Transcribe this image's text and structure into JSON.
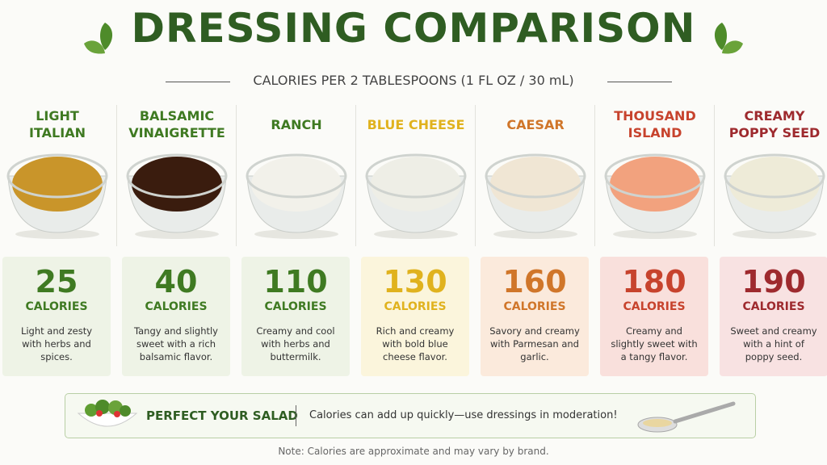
{
  "header": {
    "title": "DRESSING COMPARISON",
    "subtitle": "CALORIES PER 2 TABLESPOONS (1 FL OZ / 30 mL)"
  },
  "calorie_label": "CALORIES",
  "dressings": [
    {
      "name": [
        "LIGHT",
        "ITALIAN"
      ],
      "calories": "25",
      "description": "Light and zesty with herbs and spices.",
      "color": "#3f7a22",
      "background": "#eef3e6",
      "sauce": "#c9952a"
    },
    {
      "name": [
        "BALSAMIC",
        "VINAIGRETTE"
      ],
      "calories": "40",
      "description": "Tangy and slightly sweet with a rich balsamic flavor.",
      "color": "#3f7a22",
      "background": "#eef3e6",
      "sauce": "#3a1c0e"
    },
    {
      "name": [
        "RANCH"
      ],
      "calories": "110",
      "description": "Creamy and cool with herbs and buttermilk.",
      "color": "#3f7a22",
      "background": "#eef3e6",
      "sauce": "#f2f1ea"
    },
    {
      "name": [
        "BLUE CHEESE"
      ],
      "calories": "130",
      "description": "Rich and creamy with bold blue cheese flavor.",
      "color": "#e0b21e",
      "background": "#fbf5dc",
      "sauce": "#eeeee6"
    },
    {
      "name": [
        "CAESAR"
      ],
      "calories": "160",
      "description": "Savory and creamy with Parmesan and garlic.",
      "color": "#d0762a",
      "background": "#fbeadc",
      "sauce": "#f0e6d4"
    },
    {
      "name": [
        "THOUSAND",
        "ISLAND"
      ],
      "calories": "180",
      "description": "Creamy and slightly sweet with a tangy flavor.",
      "color": "#c7432d",
      "background": "#f9e0dc",
      "sauce": "#f2a27e"
    },
    {
      "name": [
        "CREAMY",
        "POPPY SEED"
      ],
      "calories": "190",
      "description": "Sweet and creamy with a hint of poppy seed.",
      "color": "#9e2a2e",
      "background": "#f8e2e2",
      "sauce": "#eeebd8"
    }
  ],
  "banner": {
    "title": "PERFECT YOUR SALAD",
    "message": "Calories can add up quickly—use dressings in moderation!"
  },
  "note": "Note: Calories are approximate and may vary by brand."
}
